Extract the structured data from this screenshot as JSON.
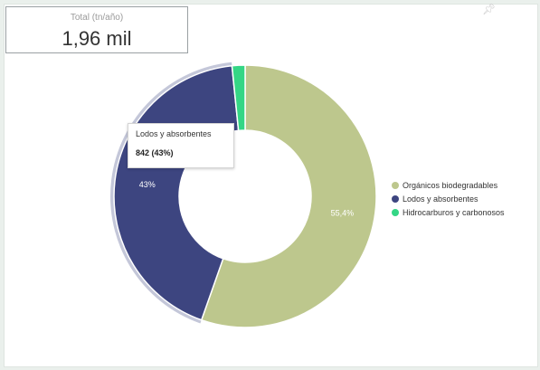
{
  "kpi": {
    "label": "Total (tn/año)",
    "value": "1,96 mil"
  },
  "icons": {
    "corner": "pin-icon"
  },
  "tooltip": {
    "title": "Lodos y absorbentes",
    "value": "842 (43%)"
  },
  "chart_data": {
    "type": "pie",
    "donut": true,
    "categories": [
      "Orgánicos biodegradables",
      "Lodos y absorbentes",
      "Hidrocarburos y carbonosos"
    ],
    "values": [
      55.4,
      43,
      1.6
    ],
    "data_labels": [
      "55,4%",
      "43%",
      ""
    ],
    "colors": [
      "#bdc78d",
      "#3d4580",
      "#34d685"
    ],
    "highlighted": "Lodos y absorbentes",
    "legend_position": "right"
  }
}
